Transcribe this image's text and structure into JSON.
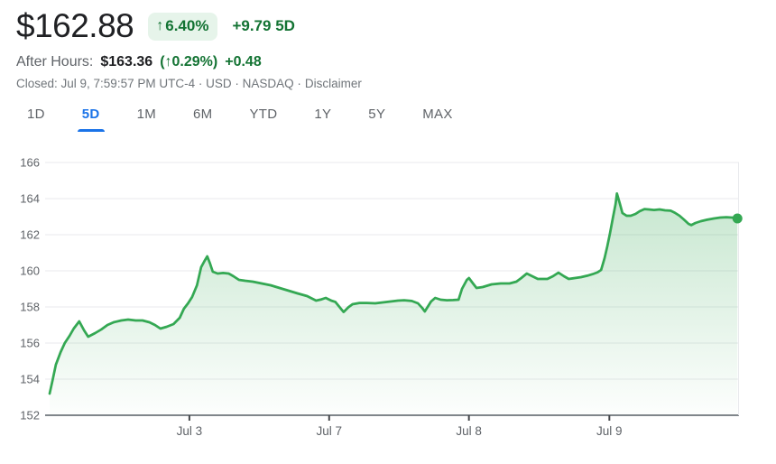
{
  "header": {
    "price": "$162.88",
    "arrow": "↑",
    "change_pct": "6.40%",
    "change_abs": "+9.79 5D",
    "after_hours": {
      "label": "After Hours:",
      "price": "$163.36",
      "pct": "(↑0.29%)",
      "abs": "+0.48"
    },
    "status_line": "Closed: Jul 9, 7:59:57 PM UTC-4 · USD · NASDAQ ·",
    "disclaimer": "Disclaimer"
  },
  "tabs": [
    {
      "label": "1D",
      "active": false
    },
    {
      "label": "5D",
      "active": true
    },
    {
      "label": "1M",
      "active": false
    },
    {
      "label": "6M",
      "active": false
    },
    {
      "label": "YTD",
      "active": false
    },
    {
      "label": "1Y",
      "active": false
    },
    {
      "label": "5Y",
      "active": false
    },
    {
      "label": "MAX",
      "active": false
    }
  ],
  "colors": {
    "price_text": "#202124",
    "positive_green": "#137333",
    "pill_bg": "#e6f4ea",
    "line_green": "#34a853",
    "active_tab_blue": "#1a73e8",
    "gridline": "#e9eaed",
    "axis": "#80868b",
    "tick": "#44474a",
    "axis_label": "#5f6368"
  },
  "chart_data": {
    "type": "area",
    "title": "5-day stock price",
    "xlabel": "",
    "ylabel": "",
    "ylim": [
      152,
      166
    ],
    "grid": true,
    "y_ticks": [
      166,
      164,
      162,
      160,
      158,
      156,
      154,
      152
    ],
    "x_ticks": [
      {
        "pos": 0.203,
        "label": "Jul 3"
      },
      {
        "pos": 0.406,
        "label": "Jul 7"
      },
      {
        "pos": 0.609,
        "label": "Jul 8"
      },
      {
        "pos": 0.813,
        "label": "Jul 9"
      }
    ],
    "end_dot_value": 162.9,
    "points": [
      [
        0.0,
        153.2
      ],
      [
        0.004,
        153.9
      ],
      [
        0.009,
        154.8
      ],
      [
        0.016,
        155.5
      ],
      [
        0.022,
        156.0
      ],
      [
        0.029,
        156.4
      ],
      [
        0.035,
        156.8
      ],
      [
        0.043,
        157.2
      ],
      [
        0.05,
        156.7
      ],
      [
        0.056,
        156.35
      ],
      [
        0.066,
        156.55
      ],
      [
        0.075,
        156.75
      ],
      [
        0.084,
        157.0
      ],
      [
        0.093,
        157.15
      ],
      [
        0.104,
        157.25
      ],
      [
        0.114,
        157.3
      ],
      [
        0.125,
        157.25
      ],
      [
        0.135,
        157.25
      ],
      [
        0.145,
        157.15
      ],
      [
        0.153,
        157.0
      ],
      [
        0.161,
        156.8
      ],
      [
        0.17,
        156.9
      ],
      [
        0.18,
        157.05
      ],
      [
        0.189,
        157.4
      ],
      [
        0.195,
        157.9
      ],
      [
        0.201,
        158.2
      ],
      [
        0.207,
        158.55
      ],
      [
        0.214,
        159.2
      ],
      [
        0.22,
        160.2
      ],
      [
        0.225,
        160.55
      ],
      [
        0.229,
        160.8
      ],
      [
        0.233,
        160.4
      ],
      [
        0.237,
        159.95
      ],
      [
        0.244,
        159.85
      ],
      [
        0.252,
        159.88
      ],
      [
        0.26,
        159.85
      ],
      [
        0.267,
        159.7
      ],
      [
        0.275,
        159.5
      ],
      [
        0.284,
        159.45
      ],
      [
        0.295,
        159.4
      ],
      [
        0.308,
        159.3
      ],
      [
        0.321,
        159.2
      ],
      [
        0.334,
        159.05
      ],
      [
        0.347,
        158.9
      ],
      [
        0.36,
        158.75
      ],
      [
        0.374,
        158.6
      ],
      [
        0.387,
        158.35
      ],
      [
        0.395,
        158.42
      ],
      [
        0.401,
        158.5
      ],
      [
        0.409,
        158.35
      ],
      [
        0.415,
        158.28
      ],
      [
        0.422,
        157.95
      ],
      [
        0.427,
        157.72
      ],
      [
        0.434,
        157.98
      ],
      [
        0.44,
        158.15
      ],
      [
        0.45,
        158.22
      ],
      [
        0.461,
        158.22
      ],
      [
        0.473,
        158.2
      ],
      [
        0.484,
        158.25
      ],
      [
        0.495,
        158.3
      ],
      [
        0.506,
        158.35
      ],
      [
        0.515,
        158.37
      ],
      [
        0.526,
        158.33
      ],
      [
        0.535,
        158.2
      ],
      [
        0.541,
        157.95
      ],
      [
        0.545,
        157.75
      ],
      [
        0.554,
        158.3
      ],
      [
        0.56,
        158.5
      ],
      [
        0.568,
        158.4
      ],
      [
        0.577,
        158.37
      ],
      [
        0.586,
        158.38
      ],
      [
        0.594,
        158.4
      ],
      [
        0.599,
        159.0
      ],
      [
        0.606,
        159.5
      ],
      [
        0.609,
        159.6
      ],
      [
        0.615,
        159.3
      ],
      [
        0.62,
        159.05
      ],
      [
        0.629,
        159.1
      ],
      [
        0.642,
        159.25
      ],
      [
        0.655,
        159.3
      ],
      [
        0.668,
        159.3
      ],
      [
        0.678,
        159.4
      ],
      [
        0.685,
        159.6
      ],
      [
        0.693,
        159.85
      ],
      [
        0.701,
        159.7
      ],
      [
        0.709,
        159.55
      ],
      [
        0.723,
        159.55
      ],
      [
        0.731,
        159.7
      ],
      [
        0.739,
        159.9
      ],
      [
        0.747,
        159.7
      ],
      [
        0.754,
        159.55
      ],
      [
        0.763,
        159.6
      ],
      [
        0.772,
        159.65
      ],
      [
        0.781,
        159.73
      ],
      [
        0.789,
        159.82
      ],
      [
        0.796,
        159.92
      ],
      [
        0.801,
        160.05
      ],
      [
        0.806,
        160.7
      ],
      [
        0.81,
        161.35
      ],
      [
        0.814,
        162.1
      ],
      [
        0.818,
        162.9
      ],
      [
        0.822,
        163.7
      ],
      [
        0.824,
        164.28
      ],
      [
        0.828,
        163.75
      ],
      [
        0.832,
        163.2
      ],
      [
        0.838,
        163.05
      ],
      [
        0.844,
        163.05
      ],
      [
        0.851,
        163.15
      ],
      [
        0.857,
        163.3
      ],
      [
        0.864,
        163.42
      ],
      [
        0.87,
        163.4
      ],
      [
        0.878,
        163.37
      ],
      [
        0.886,
        163.4
      ],
      [
        0.894,
        163.35
      ],
      [
        0.902,
        163.33
      ],
      [
        0.908,
        163.22
      ],
      [
        0.915,
        163.05
      ],
      [
        0.921,
        162.85
      ],
      [
        0.928,
        162.6
      ],
      [
        0.932,
        162.53
      ],
      [
        0.938,
        162.65
      ],
      [
        0.946,
        162.75
      ],
      [
        0.955,
        162.83
      ],
      [
        0.965,
        162.9
      ],
      [
        0.974,
        162.95
      ],
      [
        0.983,
        162.97
      ],
      [
        0.991,
        162.95
      ],
      [
        0.999,
        162.9
      ]
    ]
  }
}
